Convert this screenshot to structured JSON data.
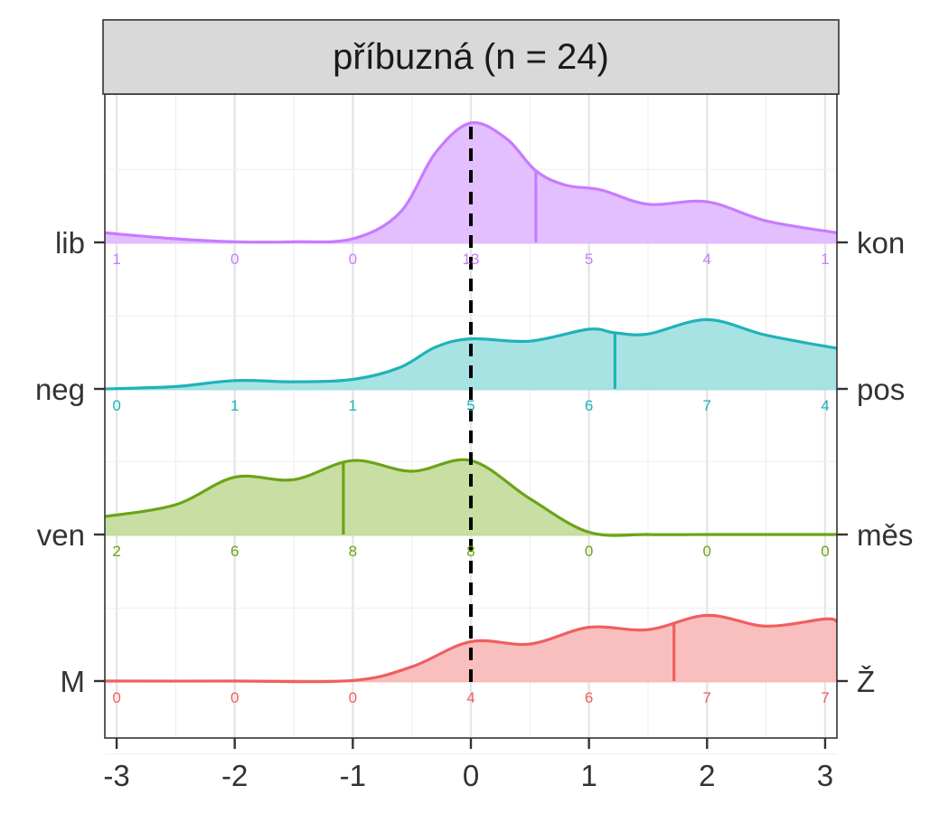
{
  "chart_data": {
    "type": "ridgeline",
    "title": "příbuzná (n = 24)",
    "xlabel": "",
    "ylabel": "",
    "xlim": [
      -3.1,
      3.1
    ],
    "x_ticks": [
      -3,
      -2,
      -1,
      0,
      1,
      2,
      3
    ],
    "x_tick_labels": [
      "-3",
      "-2",
      "-1",
      "0",
      "1",
      "2",
      "3"
    ],
    "reference_line_x": 0,
    "grid": true,
    "series": [
      {
        "left_label": "lib",
        "right_label": "kon",
        "color": "#C77CFF",
        "fill": "#E2BCFF",
        "mean": 0.55,
        "counts": [
          1,
          0,
          0,
          13,
          5,
          4,
          1
        ],
        "density": [
          [
            -3.1,
            0.08
          ],
          [
            -2.5,
            0.03
          ],
          [
            -2,
            0.005
          ],
          [
            -1.5,
            0.005
          ],
          [
            -1,
            0.03
          ],
          [
            -0.6,
            0.25
          ],
          [
            -0.3,
            0.75
          ],
          [
            0,
            1.0
          ],
          [
            0.3,
            0.87
          ],
          [
            0.55,
            0.6
          ],
          [
            0.8,
            0.48
          ],
          [
            1.1,
            0.44
          ],
          [
            1.5,
            0.32
          ],
          [
            2,
            0.34
          ],
          [
            2.5,
            0.18
          ],
          [
            3.1,
            0.08
          ]
        ]
      },
      {
        "left_label": "neg",
        "right_label": "pos",
        "color": "#1FB3B8",
        "fill": "#A3E1E3",
        "mean": 1.22,
        "counts": [
          0,
          1,
          1,
          5,
          6,
          7,
          4
        ],
        "density": [
          [
            -3.1,
            0.0
          ],
          [
            -2.5,
            0.02
          ],
          [
            -2,
            0.07
          ],
          [
            -1.5,
            0.06
          ],
          [
            -1,
            0.08
          ],
          [
            -0.6,
            0.18
          ],
          [
            -0.3,
            0.35
          ],
          [
            0,
            0.42
          ],
          [
            0.5,
            0.4
          ],
          [
            1,
            0.5
          ],
          [
            1.22,
            0.47
          ],
          [
            1.5,
            0.46
          ],
          [
            2,
            0.58
          ],
          [
            2.5,
            0.45
          ],
          [
            3.1,
            0.34
          ]
        ]
      },
      {
        "left_label": "ven",
        "right_label": "měs",
        "color": "#6AA417",
        "fill": "#C6DC9E",
        "mean": -1.08,
        "counts": [
          2,
          6,
          8,
          8,
          0,
          0,
          0
        ],
        "density": [
          [
            -3.1,
            0.15
          ],
          [
            -2.5,
            0.25
          ],
          [
            -2,
            0.48
          ],
          [
            -1.5,
            0.46
          ],
          [
            -1,
            0.62
          ],
          [
            -0.5,
            0.53
          ],
          [
            0,
            0.62
          ],
          [
            0.5,
            0.3
          ],
          [
            1,
            0.02
          ],
          [
            1.5,
            0.0
          ],
          [
            2,
            0.0
          ],
          [
            2.5,
            0.0
          ],
          [
            3.1,
            0.0
          ]
        ]
      },
      {
        "left_label": "M",
        "right_label": "Ž",
        "color": "#EF5F5F",
        "fill": "#F8BCBA",
        "mean": 1.72,
        "counts": [
          0,
          0,
          0,
          4,
          6,
          7,
          7
        ],
        "density": [
          [
            -3.1,
            0.0
          ],
          [
            -2,
            0.0
          ],
          [
            -1,
            0.005
          ],
          [
            -0.5,
            0.12
          ],
          [
            0,
            0.33
          ],
          [
            0.5,
            0.31
          ],
          [
            1,
            0.45
          ],
          [
            1.5,
            0.43
          ],
          [
            2,
            0.55
          ],
          [
            2.5,
            0.46
          ],
          [
            3,
            0.52
          ],
          [
            3.1,
            0.5
          ]
        ]
      }
    ]
  }
}
